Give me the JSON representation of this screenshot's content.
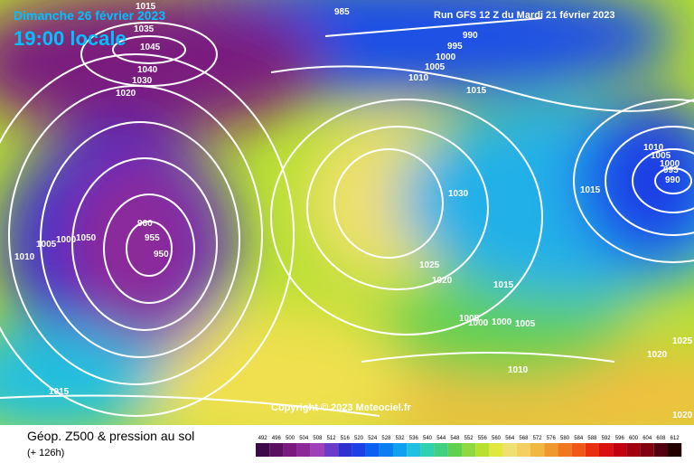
{
  "header": {
    "date": "Dimanche 26 février 2023",
    "time": "19:00 locale",
    "run": "Run GFS 12 Z du Mardi 21 février 2023"
  },
  "copyright": "Copyright © 2023 Meteociel.fr",
  "footer": {
    "title": "Géop. Z500 & pression au sol",
    "lead": "(+ 126h)"
  },
  "scale": {
    "values": [
      492,
      496,
      500,
      504,
      508,
      512,
      516,
      520,
      524,
      528,
      532,
      536,
      540,
      544,
      548,
      552,
      556,
      560,
      564,
      568,
      572,
      576,
      580,
      584,
      588,
      592,
      596,
      600,
      604,
      608,
      612
    ],
    "colors": [
      "#3c0a4a",
      "#5a1060",
      "#7a1a7e",
      "#8c2a9a",
      "#a040b8",
      "#6a3cc8",
      "#3030d0",
      "#1c40e6",
      "#0a60f0",
      "#0a80f0",
      "#10a0f0",
      "#20c0e0",
      "#30d0b0",
      "#40d080",
      "#60d050",
      "#90d840",
      "#b8e030",
      "#e0e840",
      "#f0e070",
      "#f5d060",
      "#f0b840",
      "#f09830",
      "#f07820",
      "#f05818",
      "#e83010",
      "#d81010",
      "#c00010",
      "#a00010",
      "#800010",
      "#500010",
      "#200000"
    ]
  },
  "isobars": [
    1015,
    985,
    1035,
    1045,
    990,
    995,
    1000,
    1005,
    1040,
    1030,
    1010,
    1015,
    1020,
    960,
    955,
    950,
    1005,
    1000,
    1050,
    1010,
    1010,
    1005,
    1000,
    995,
    990,
    1015,
    1030,
    1025,
    1020,
    1015,
    1005,
    1000,
    1000,
    1005,
    1010,
    1025,
    1020,
    1015,
    1020
  ]
}
